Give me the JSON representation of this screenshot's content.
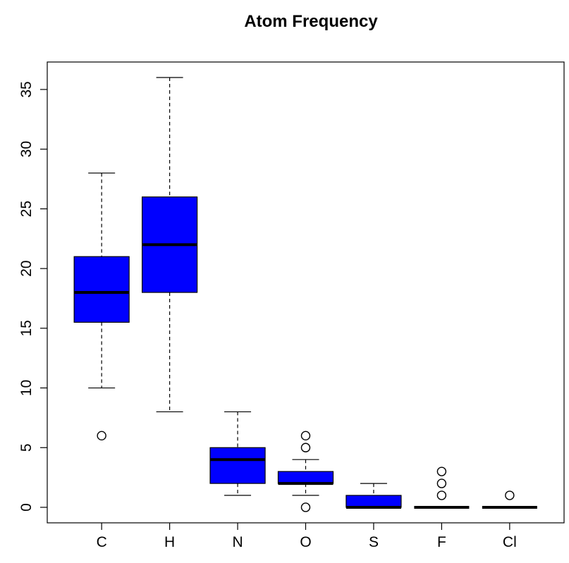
{
  "chart_data": {
    "type": "boxplot",
    "title": "Atom Frequency",
    "xlabel": "",
    "ylabel": "",
    "categories": [
      "C",
      "H",
      "N",
      "O",
      "S",
      "F",
      "Cl"
    ],
    "ylim": [
      -1.3,
      37.3
    ],
    "yticks": [
      0,
      5,
      10,
      15,
      20,
      25,
      30,
      35
    ],
    "ytick_labels": [
      "0",
      "5",
      "10",
      "15",
      "20",
      "25",
      "30",
      "35"
    ],
    "grid": false,
    "box_color": "#0000ff",
    "boxes": [
      {
        "category": "C",
        "whisker_low": 10,
        "q1": 15.5,
        "median": 18,
        "q3": 21,
        "whisker_high": 28,
        "outliers": [
          6
        ]
      },
      {
        "category": "H",
        "whisker_low": 8,
        "q1": 18,
        "median": 22,
        "q3": 26,
        "whisker_high": 36,
        "outliers": []
      },
      {
        "category": "N",
        "whisker_low": 1,
        "q1": 2,
        "median": 4,
        "q3": 5,
        "whisker_high": 8,
        "outliers": []
      },
      {
        "category": "O",
        "whisker_low": 1,
        "q1": 2,
        "median": 2,
        "q3": 3,
        "whisker_high": 4,
        "outliers": [
          0,
          5,
          6
        ]
      },
      {
        "category": "S",
        "whisker_low": 0,
        "q1": 0,
        "median": 0,
        "q3": 1,
        "whisker_high": 2,
        "outliers": []
      },
      {
        "category": "F",
        "whisker_low": 0,
        "q1": 0,
        "median": 0,
        "q3": 0,
        "whisker_high": 0,
        "outliers": [
          1,
          2,
          3
        ]
      },
      {
        "category": "Cl",
        "whisker_low": 0,
        "q1": 0,
        "median": 0,
        "q3": 0,
        "whisker_high": 0,
        "outliers": [
          1
        ]
      }
    ]
  }
}
